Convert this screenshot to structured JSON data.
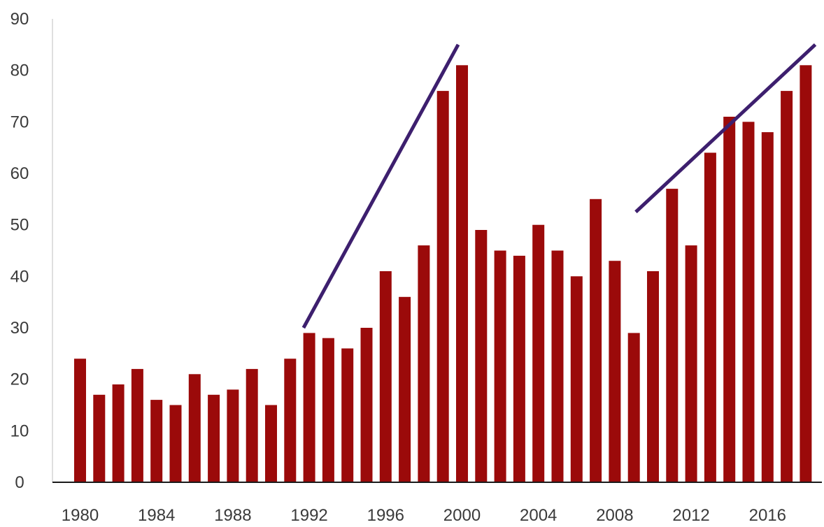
{
  "chart_data": {
    "type": "bar",
    "title": "",
    "xlabel": "",
    "ylabel": "",
    "categories": [
      1980,
      1981,
      1982,
      1983,
      1984,
      1985,
      1986,
      1987,
      1988,
      1989,
      1990,
      1991,
      1992,
      1993,
      1994,
      1995,
      1996,
      1997,
      1998,
      1999,
      2000,
      2001,
      2002,
      2003,
      2004,
      2005,
      2006,
      2007,
      2008,
      2009,
      2010,
      2011,
      2012,
      2013,
      2014,
      2015,
      2016,
      2017,
      2018
    ],
    "values": [
      24,
      17,
      19,
      22,
      16,
      15,
      21,
      17,
      18,
      22,
      15,
      24,
      29,
      28,
      26,
      30,
      41,
      36,
      46,
      76,
      81,
      49,
      45,
      44,
      50,
      45,
      40,
      55,
      43,
      29,
      41,
      57,
      46,
      64,
      71,
      70,
      68,
      76,
      81
    ],
    "x_tick_labels": [
      "1980",
      "1984",
      "1988",
      "1992",
      "1996",
      "2000",
      "2004",
      "2008",
      "2012",
      "2016"
    ],
    "y_tick_labels": [
      "0",
      "10",
      "20",
      "30",
      "40",
      "50",
      "60",
      "70",
      "80",
      "90"
    ],
    "ylim": [
      0,
      90
    ],
    "grid": false,
    "bar_color": "#9b0a0a",
    "trend_line_color": "#3d1f6e",
    "trend_lines": [
      {
        "x": [
          1991.7,
          1999.8
        ],
        "y": [
          30,
          85
        ]
      },
      {
        "x": [
          2009.1,
          2018.5
        ],
        "y": [
          52.5,
          85
        ]
      }
    ]
  }
}
